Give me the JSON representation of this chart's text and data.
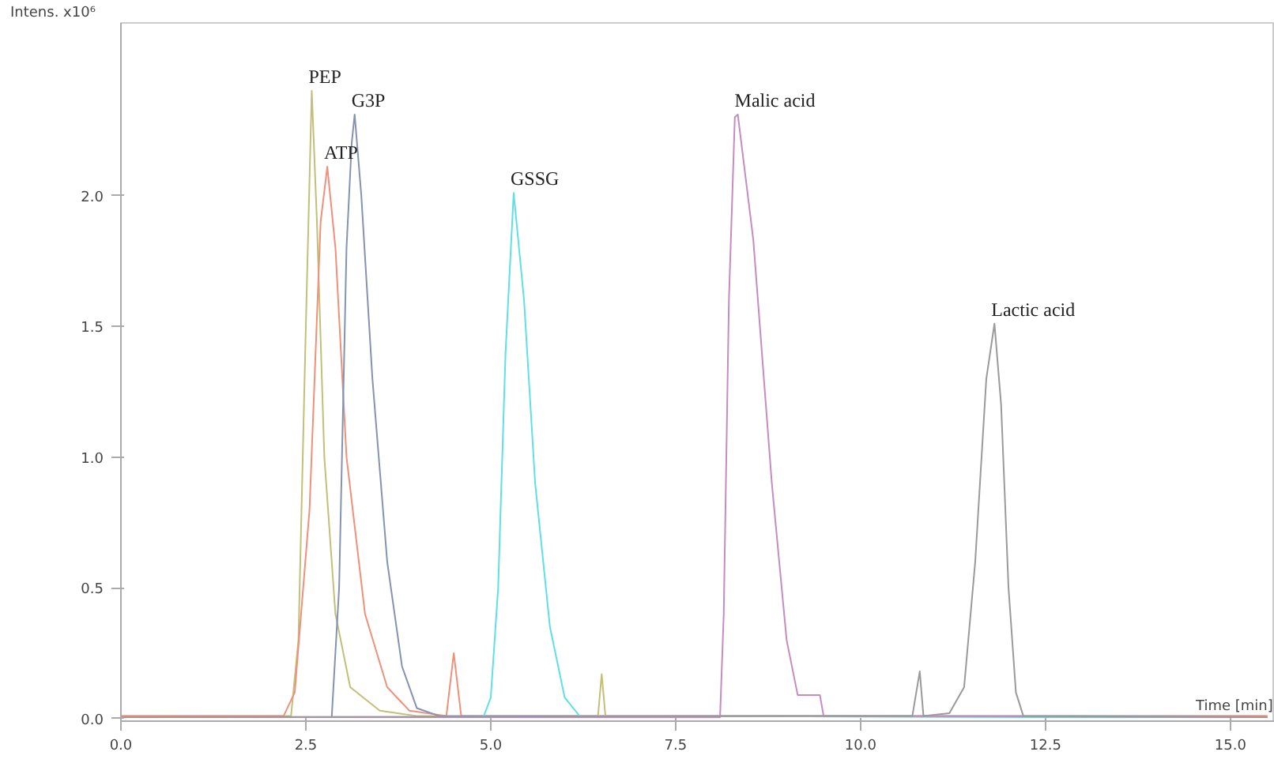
{
  "chart_data": {
    "type": "line",
    "xlabel": "Time [min]",
    "ylabel": "Intens. x10⁶",
    "xlim": [
      0,
      15.6
    ],
    "ylim": [
      -0.01,
      2.66
    ],
    "xticks": [
      {
        "value": 0,
        "label": "0.0"
      },
      {
        "value": 2.5,
        "label": "2.5"
      },
      {
        "value": 5,
        "label": "5.0"
      },
      {
        "value": 7.5,
        "label": "7.5"
      },
      {
        "value": 10,
        "label": "10.0"
      },
      {
        "value": 12.5,
        "label": "12.5"
      },
      {
        "value": 15,
        "label": "15.0"
      }
    ],
    "yticks": [
      {
        "value": 0,
        "label": "0.0"
      },
      {
        "value": 0.5,
        "label": "0.5"
      },
      {
        "value": 1,
        "label": "1.0"
      },
      {
        "value": 1.5,
        "label": "1.5"
      },
      {
        "value": 2,
        "label": "2.0"
      }
    ],
    "series": [
      {
        "name": "PEP",
        "color": "#c2bf78",
        "x": [
          0,
          2.3,
          2.4,
          2.5,
          2.58,
          2.65,
          2.75,
          2.9,
          3.1,
          3.5,
          4.0,
          6.45,
          6.5,
          6.55,
          15.5
        ],
        "values": [
          0.01,
          0.01,
          0.3,
          1.5,
          2.4,
          1.9,
          1.0,
          0.4,
          0.12,
          0.03,
          0.01,
          0.01,
          0.17,
          0.01,
          0.01
        ]
      },
      {
        "name": "ATP",
        "color": "#f0907a",
        "x": [
          0,
          2.2,
          2.35,
          2.55,
          2.7,
          2.79,
          2.9,
          3.05,
          3.3,
          3.6,
          3.9,
          4.4,
          4.5,
          4.6,
          15.5
        ],
        "values": [
          0.01,
          0.01,
          0.1,
          0.8,
          1.9,
          2.11,
          1.8,
          1.0,
          0.4,
          0.12,
          0.03,
          0.01,
          0.25,
          0.01,
          0.01
        ]
      },
      {
        "name": "G3P",
        "color": "#8592b0",
        "x": [
          0,
          2.85,
          2.95,
          3.05,
          3.12,
          3.16,
          3.25,
          3.4,
          3.6,
          3.8,
          4.0,
          4.3,
          15.5
        ],
        "values": [
          0.005,
          0.005,
          0.5,
          1.8,
          2.2,
          2.31,
          2.0,
          1.3,
          0.6,
          0.2,
          0.04,
          0.01,
          0.005
        ]
      },
      {
        "name": "GSSG",
        "color": "#5ee0e6",
        "x": [
          0,
          4.9,
          5.0,
          5.1,
          5.2,
          5.31,
          5.45,
          5.6,
          5.8,
          6.0,
          6.2,
          15.5
        ],
        "values": [
          0.005,
          0.005,
          0.08,
          0.5,
          1.4,
          2.01,
          1.6,
          0.9,
          0.35,
          0.08,
          0.01,
          0.005
        ]
      },
      {
        "name": "Malic acid",
        "color": "#c58cc0",
        "x": [
          0,
          8.1,
          8.15,
          8.22,
          8.3,
          8.34,
          8.55,
          8.8,
          9.0,
          9.15,
          9.45,
          9.5,
          15.5
        ],
        "values": [
          0.005,
          0.005,
          0.4,
          1.6,
          2.3,
          2.31,
          1.83,
          0.9,
          0.3,
          0.09,
          0.09,
          0.01,
          0.005
        ]
      },
      {
        "name": "Lactic acid",
        "color": "#9a9a9a",
        "x": [
          0,
          10.7,
          10.8,
          10.85,
          11.2,
          11.4,
          11.55,
          11.7,
          11.81,
          11.9,
          12.0,
          12.1,
          12.2,
          15.5
        ],
        "values": [
          0.005,
          0.01,
          0.18,
          0.01,
          0.02,
          0.12,
          0.6,
          1.3,
          1.51,
          1.2,
          0.5,
          0.1,
          0.01,
          0.005
        ]
      }
    ]
  }
}
